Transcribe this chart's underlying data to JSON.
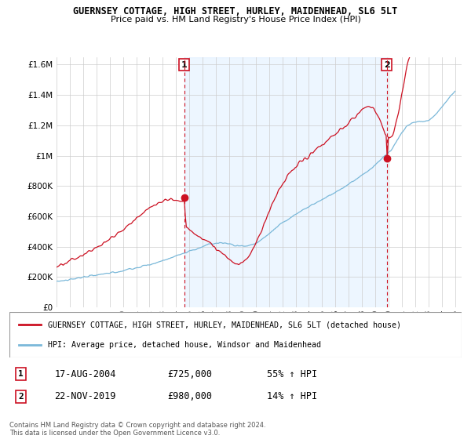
{
  "title": "GUERNSEY COTTAGE, HIGH STREET, HURLEY, MAIDENHEAD, SL6 5LT",
  "subtitle": "Price paid vs. HM Land Registry's House Price Index (HPI)",
  "legend_line1": "GUERNSEY COTTAGE, HIGH STREET, HURLEY, MAIDENHEAD, SL6 5LT (detached house)",
  "legend_line2": "HPI: Average price, detached house, Windsor and Maidenhead",
  "transaction1_label": "1",
  "transaction1_date": "17-AUG-2004",
  "transaction1_price": "£725,000",
  "transaction1_pct": "55% ↑ HPI",
  "transaction1_year": 2004.625,
  "transaction1_price_val": 725000,
  "transaction2_label": "2",
  "transaction2_date": "22-NOV-2019",
  "transaction2_price": "£980,000",
  "transaction2_pct": "14% ↑ HPI",
  "transaction2_year": 2019.875,
  "transaction2_price_val": 980000,
  "footnote": "Contains HM Land Registry data © Crown copyright and database right 2024.\nThis data is licensed under the Open Government Licence v3.0.",
  "red_color": "#cc1122",
  "blue_color": "#7ab8d9",
  "blue_fill_color": "#ddeeff",
  "vline_color": "#cc1122",
  "background_color": "#ffffff",
  "grid_color": "#cccccc",
  "ylim": [
    0,
    1650000
  ],
  "yticks": [
    0,
    200000,
    400000,
    600000,
    800000,
    1000000,
    1200000,
    1400000,
    1600000
  ],
  "xmin": 1995,
  "xmax": 2025.5
}
